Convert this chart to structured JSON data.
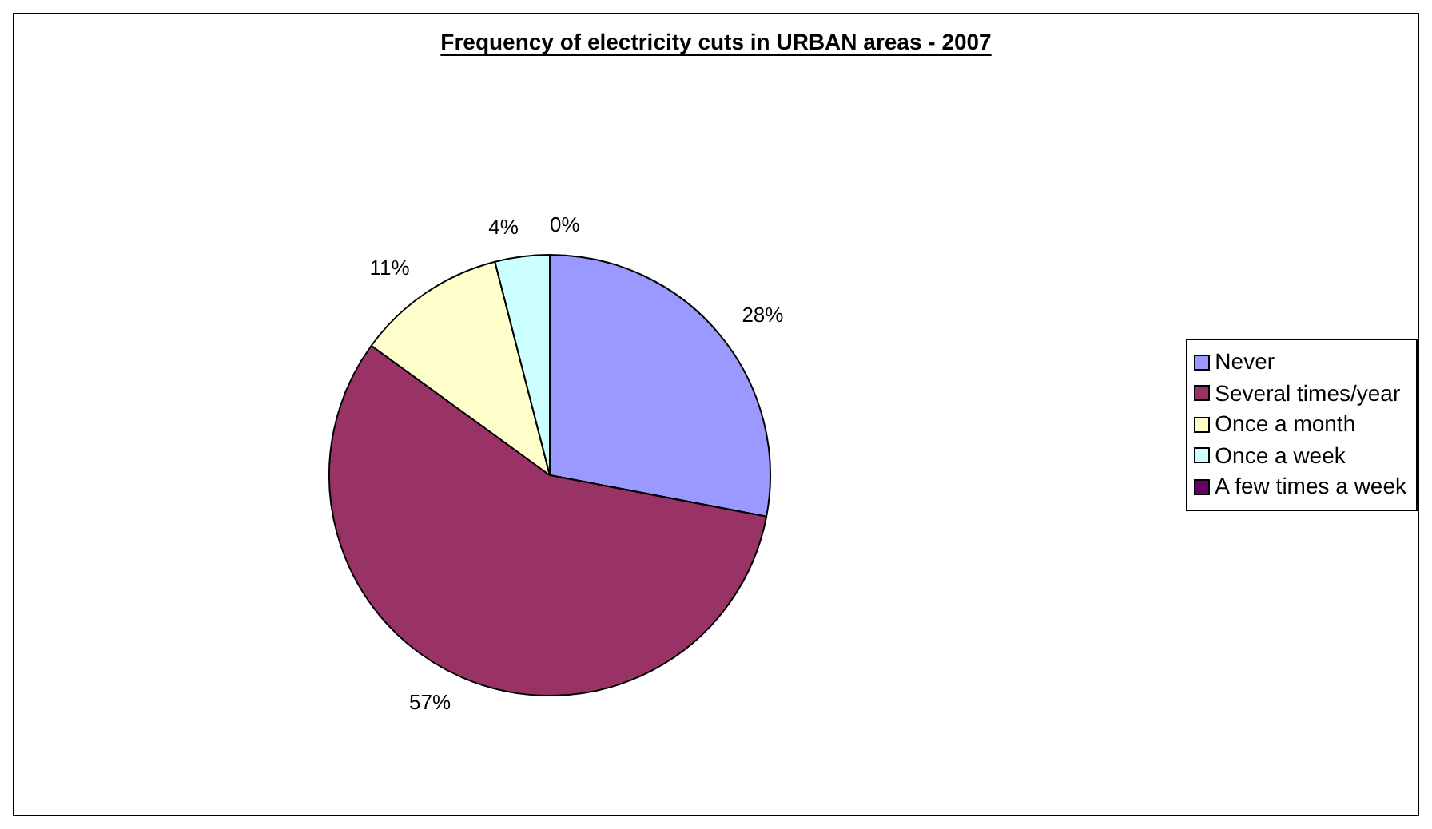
{
  "chart_data": {
    "type": "pie",
    "title": "Frequency of electricity cuts in URBAN areas - 2007",
    "categories": [
      "Never",
      "Several times/year",
      "Once a month",
      "Once a week",
      "A few times a week"
    ],
    "values": [
      28,
      57,
      11,
      4,
      0
    ],
    "value_labels": [
      "28%",
      "57%",
      "11%",
      "4%",
      "0%"
    ],
    "colors": [
      "#9999ff",
      "#993366",
      "#ffffcc",
      "#ccffff",
      "#660066"
    ],
    "legend": "right"
  }
}
